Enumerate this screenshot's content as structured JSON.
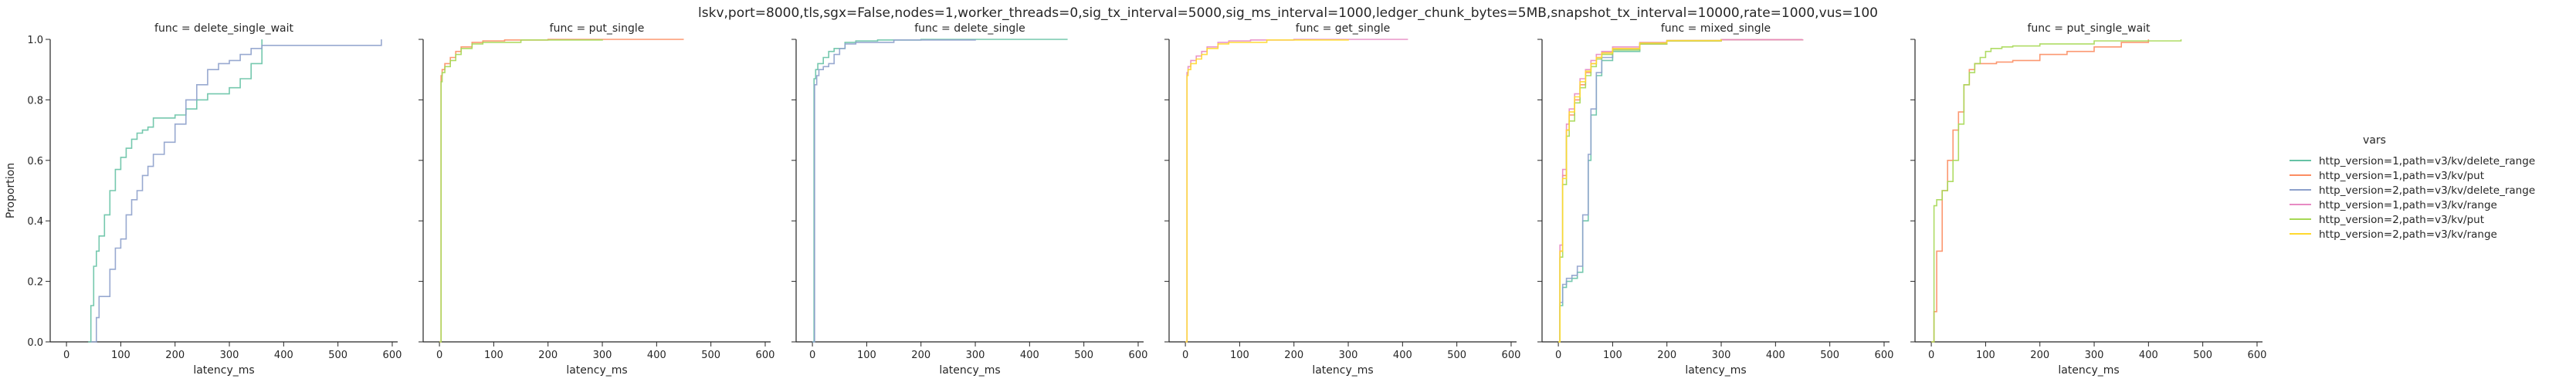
{
  "figure": {
    "suptitle": "lskv,port=8000,tls,sgx=False,nodes=1,worker_threads=0,sig_tx_interval=5000,sig_ms_interval=1000,ledger_chunk_bytes=5MB,snapshot_tx_interval=10000,rate=1000,vus=100"
  },
  "legend": {
    "title": "vars",
    "entries": [
      {
        "label": "http_version=1,path=v3/kv/delete_range",
        "color": "#66c2a5"
      },
      {
        "label": "http_version=1,path=v3/kv/put",
        "color": "#fc8d62"
      },
      {
        "label": "http_version=2,path=v3/kv/delete_range",
        "color": "#8da0cb"
      },
      {
        "label": "http_version=1,path=v3/kv/range",
        "color": "#e78ac3"
      },
      {
        "label": "http_version=2,path=v3/kv/put",
        "color": "#a6d854"
      },
      {
        "label": "http_version=2,path=v3/kv/range",
        "color": "#ffd92f"
      }
    ]
  },
  "chart_data": [
    {
      "type": "line",
      "title": "func = delete_single_wait",
      "xlabel": "latency_ms",
      "ylabel": "Proportion",
      "xlim": [
        -30,
        610
      ],
      "ylim": [
        0,
        1
      ],
      "xticks": [
        0,
        100,
        200,
        300,
        400,
        500,
        600
      ],
      "yticks": [
        0.0,
        0.2,
        0.4,
        0.6,
        0.8,
        1.0
      ],
      "series": [
        {
          "color": "#66c2a5",
          "x": [
            40,
            45,
            50,
            55,
            60,
            70,
            80,
            90,
            100,
            110,
            120,
            130,
            140,
            150,
            160,
            180,
            200,
            220,
            240,
            260,
            280,
            300,
            320,
            340,
            360
          ],
          "y": [
            0.0,
            0.12,
            0.25,
            0.3,
            0.35,
            0.42,
            0.5,
            0.57,
            0.61,
            0.64,
            0.67,
            0.69,
            0.7,
            0.71,
            0.74,
            0.74,
            0.75,
            0.77,
            0.8,
            0.82,
            0.82,
            0.84,
            0.87,
            0.92,
            1.0
          ]
        },
        {
          "color": "#8da0cb",
          "x": [
            45,
            55,
            60,
            70,
            80,
            90,
            100,
            110,
            120,
            130,
            140,
            150,
            160,
            180,
            200,
            220,
            240,
            260,
            280,
            300,
            320,
            340,
            360,
            400,
            580
          ],
          "y": [
            0.0,
            0.08,
            0.15,
            0.15,
            0.24,
            0.31,
            0.34,
            0.42,
            0.47,
            0.5,
            0.55,
            0.58,
            0.62,
            0.66,
            0.72,
            0.8,
            0.85,
            0.9,
            0.92,
            0.93,
            0.95,
            0.97,
            0.98,
            0.98,
            1.0
          ]
        }
      ]
    },
    {
      "type": "line",
      "title": "func = put_single",
      "xlabel": "latency_ms",
      "xlim": [
        -30,
        610
      ],
      "ylim": [
        0,
        1
      ],
      "xticks": [
        0,
        100,
        200,
        300,
        400,
        500,
        600
      ],
      "series": [
        {
          "color": "#fc8d62",
          "x": [
            0,
            3,
            5,
            10,
            20,
            30,
            40,
            60,
            80,
            120,
            200,
            450
          ],
          "y": [
            0.0,
            0.88,
            0.9,
            0.92,
            0.94,
            0.96,
            0.975,
            0.99,
            0.995,
            0.998,
            1.0,
            1.0
          ]
        },
        {
          "color": "#a6d854",
          "x": [
            0,
            3,
            5,
            10,
            20,
            30,
            40,
            60,
            80,
            150,
            300
          ],
          "y": [
            0.0,
            0.86,
            0.89,
            0.91,
            0.93,
            0.95,
            0.97,
            0.985,
            0.99,
            0.998,
            1.0
          ]
        }
      ]
    },
    {
      "type": "line",
      "title": "func = delete_single",
      "xlabel": "latency_ms",
      "xlim": [
        -30,
        610
      ],
      "ylim": [
        0,
        1
      ],
      "xticks": [
        0,
        100,
        200,
        300,
        400,
        500,
        600
      ],
      "series": [
        {
          "color": "#66c2a5",
          "x": [
            0,
            3,
            6,
            10,
            20,
            30,
            40,
            60,
            80,
            120,
            200,
            470
          ],
          "y": [
            0.0,
            0.87,
            0.9,
            0.92,
            0.94,
            0.96,
            0.97,
            0.99,
            0.995,
            0.998,
            1.0,
            1.0
          ]
        },
        {
          "color": "#8da0cb",
          "x": [
            0,
            4,
            8,
            12,
            20,
            30,
            40,
            50,
            60,
            80,
            150,
            300
          ],
          "y": [
            0.0,
            0.85,
            0.88,
            0.9,
            0.91,
            0.92,
            0.95,
            0.97,
            0.985,
            0.99,
            0.998,
            1.0
          ]
        }
      ]
    },
    {
      "type": "line",
      "title": "func = get_single",
      "xlabel": "latency_ms",
      "xlim": [
        -30,
        610
      ],
      "ylim": [
        0,
        1
      ],
      "xticks": [
        0,
        100,
        200,
        300,
        400,
        500,
        600
      ],
      "series": [
        {
          "color": "#e78ac3",
          "x": [
            0,
            3,
            5,
            10,
            20,
            30,
            40,
            60,
            80,
            120,
            200,
            410
          ],
          "y": [
            0.0,
            0.89,
            0.91,
            0.93,
            0.945,
            0.96,
            0.975,
            0.99,
            0.995,
            0.998,
            1.0,
            1.0
          ]
        },
        {
          "color": "#ffd92f",
          "x": [
            0,
            3,
            5,
            10,
            20,
            30,
            40,
            60,
            80,
            150,
            300
          ],
          "y": [
            0.0,
            0.88,
            0.9,
            0.92,
            0.935,
            0.95,
            0.97,
            0.985,
            0.99,
            0.998,
            1.0
          ]
        }
      ]
    },
    {
      "type": "line",
      "title": "func = mixed_single",
      "xlabel": "latency_ms",
      "xlim": [
        -30,
        610
      ],
      "ylim": [
        0,
        1
      ],
      "xticks": [
        0,
        100,
        200,
        300,
        400,
        500,
        600
      ],
      "series": [
        {
          "color": "#66c2a5",
          "x": [
            0,
            3,
            8,
            15,
            25,
            35,
            45,
            55,
            60,
            70,
            80,
            100,
            150,
            200,
            300,
            450
          ],
          "y": [
            0.0,
            0.12,
            0.18,
            0.2,
            0.21,
            0.23,
            0.4,
            0.6,
            0.75,
            0.88,
            0.93,
            0.96,
            0.985,
            0.995,
            0.999,
            1.0
          ]
        },
        {
          "color": "#fc8d62",
          "x": [
            0,
            3,
            8,
            15,
            20,
            30,
            40,
            50,
            60,
            70,
            80,
            100,
            150,
            200,
            300,
            450
          ],
          "y": [
            0.0,
            0.3,
            0.55,
            0.7,
            0.75,
            0.8,
            0.85,
            0.89,
            0.92,
            0.94,
            0.955,
            0.97,
            0.985,
            0.995,
            0.999,
            1.0
          ]
        },
        {
          "color": "#8da0cb",
          "x": [
            0,
            3,
            8,
            15,
            25,
            35,
            45,
            55,
            60,
            70,
            80,
            100,
            150,
            200,
            300
          ],
          "y": [
            0.0,
            0.13,
            0.19,
            0.21,
            0.22,
            0.25,
            0.42,
            0.62,
            0.77,
            0.89,
            0.94,
            0.965,
            0.987,
            0.996,
            1.0
          ]
        },
        {
          "color": "#e78ac3",
          "x": [
            0,
            3,
            8,
            15,
            20,
            30,
            40,
            50,
            60,
            70,
            80,
            100,
            150,
            200,
            300,
            450
          ],
          "y": [
            0.0,
            0.32,
            0.57,
            0.72,
            0.77,
            0.82,
            0.87,
            0.9,
            0.93,
            0.95,
            0.96,
            0.975,
            0.99,
            0.996,
            0.999,
            1.0
          ]
        },
        {
          "color": "#a6d854",
          "x": [
            0,
            3,
            8,
            15,
            20,
            30,
            40,
            50,
            60,
            70,
            80,
            100,
            150,
            200,
            300
          ],
          "y": [
            0.0,
            0.28,
            0.52,
            0.68,
            0.73,
            0.79,
            0.84,
            0.88,
            0.91,
            0.935,
            0.95,
            0.965,
            0.985,
            0.995,
            1.0
          ]
        },
        {
          "color": "#ffd92f",
          "x": [
            0,
            3,
            8,
            15,
            20,
            30,
            40,
            50,
            60,
            70,
            80,
            100,
            150,
            200,
            300
          ],
          "y": [
            0.0,
            0.3,
            0.54,
            0.7,
            0.76,
            0.81,
            0.86,
            0.895,
            0.92,
            0.94,
            0.955,
            0.97,
            0.988,
            0.996,
            1.0
          ]
        }
      ]
    },
    {
      "type": "line",
      "title": "func = put_single_wait",
      "xlabel": "latency_ms",
      "xlim": [
        -30,
        610
      ],
      "ylim": [
        0,
        1
      ],
      "xticks": [
        0,
        100,
        200,
        300,
        400,
        500,
        600
      ],
      "series": [
        {
          "color": "#fc8d62",
          "x": [
            0,
            5,
            10,
            20,
            30,
            40,
            50,
            60,
            70,
            80,
            90,
            100,
            120,
            150,
            200,
            250,
            300,
            350,
            400
          ],
          "y": [
            0.0,
            0.1,
            0.3,
            0.5,
            0.6,
            0.7,
            0.76,
            0.85,
            0.9,
            0.92,
            0.92,
            0.92,
            0.925,
            0.93,
            0.95,
            0.96,
            0.975,
            0.99,
            1.0
          ]
        },
        {
          "color": "#a6d854",
          "x": [
            0,
            5,
            10,
            20,
            30,
            40,
            50,
            60,
            70,
            80,
            90,
            100,
            110,
            130,
            150,
            200,
            300,
            460
          ],
          "y": [
            0.0,
            0.45,
            0.47,
            0.5,
            0.53,
            0.6,
            0.72,
            0.85,
            0.89,
            0.92,
            0.94,
            0.96,
            0.97,
            0.975,
            0.978,
            0.985,
            0.995,
            1.0
          ]
        }
      ]
    }
  ]
}
